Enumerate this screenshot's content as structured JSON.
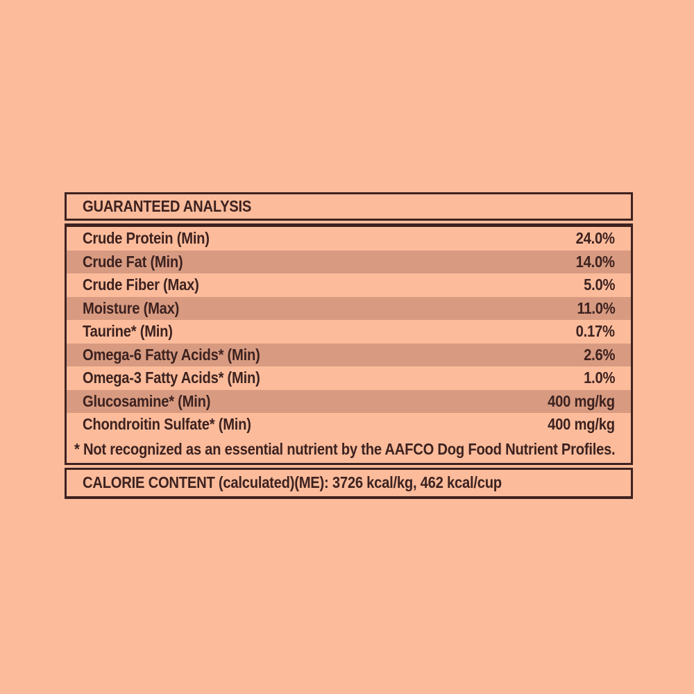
{
  "colors": {
    "background": "#FCBC9B",
    "row_shaded": "#D89B81",
    "ink": "#3D2220"
  },
  "table": {
    "title": "GUARANTEED ANALYSIS",
    "rows": [
      {
        "label": "Crude Protein (Min)",
        "value": "24.0%"
      },
      {
        "label": "Crude Fat (Min)",
        "value": "14.0%"
      },
      {
        "label": "Crude Fiber (Max)",
        "value": "5.0%"
      },
      {
        "label": "Moisture (Max)",
        "value": "11.0%"
      },
      {
        "label": "Taurine* (Min)",
        "value": "0.17%"
      },
      {
        "label": "Omega-6 Fatty Acids* (Min)",
        "value": "2.6%"
      },
      {
        "label": "Omega-3 Fatty Acids* (Min)",
        "value": "1.0%"
      },
      {
        "label": "Glucosamine* (Min)",
        "value": "400 mg/kg"
      },
      {
        "label": "Chondroitin Sulfate* (Min)",
        "value": "400 mg/kg"
      }
    ],
    "footnote": "* Not recognized as an essential nutrient by the AAFCO Dog Food Nutrient Profiles.",
    "calorie_content": "CALORIE CONTENT (calculated)(ME): 3726 kcal/kg, 462 kcal/cup"
  }
}
